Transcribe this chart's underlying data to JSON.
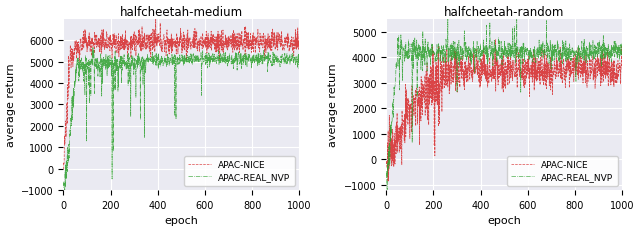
{
  "subplot1_title": "halfcheetah-medium",
  "subplot2_title": "halfcheetah-random",
  "xlabel": "epoch",
  "ylabel": "average return",
  "legend_labels": [
    "APAC-NICE",
    "APAC-REAL_NVP"
  ],
  "color_red": "#d62728",
  "color_green": "#2ca02c",
  "subplot1_ylim": [
    -1000,
    7000
  ],
  "subplot1_yticks": [
    -1000,
    0,
    1000,
    2000,
    3000,
    4000,
    5000,
    6000
  ],
  "subplot2_ylim": [
    -1200,
    5500
  ],
  "subplot2_yticks": [
    -1000,
    0,
    1000,
    2000,
    3000,
    4000,
    5000
  ],
  "xlim": [
    0,
    1000
  ],
  "xticks": [
    0,
    200,
    400,
    600,
    800,
    1000
  ],
  "bg_color": "#eaeaf2",
  "seed": 12345
}
